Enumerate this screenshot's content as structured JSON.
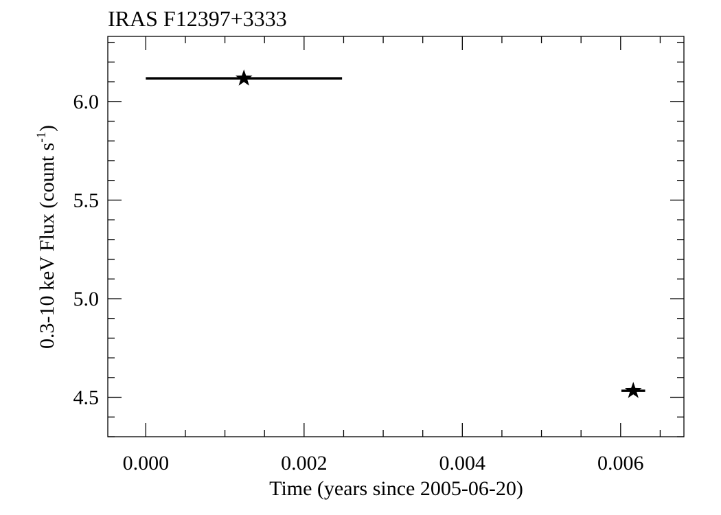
{
  "chart_data": {
    "type": "scatter",
    "title": "IRAS F12397+3333",
    "xlabel": "Time (years since 2005-06-20)",
    "ylabel": {
      "prefix": "0.3-10 keV Flux (count s",
      "superscript": "-1",
      "suffix": ")"
    },
    "xlim": [
      -0.00048,
      0.0068
    ],
    "ylim": [
      4.3,
      6.33
    ],
    "x_major_ticks": [
      0.0,
      0.002,
      0.004,
      0.006
    ],
    "x_tick_labels": [
      "0.000",
      "0.002",
      "0.004",
      "0.006"
    ],
    "x_minor_step": 0.0005,
    "y_major_ticks": [
      4.5,
      5.0,
      5.5,
      6.0
    ],
    "y_tick_labels": [
      "4.5",
      "5.0",
      "5.5",
      "6.0"
    ],
    "y_minor_step": 0.1,
    "grid": false,
    "marker": "star",
    "colors": {
      "points": "#000000",
      "axes": "#000000",
      "background": "#ffffff"
    },
    "series": [
      {
        "points": [
          {
            "x": 0.00124,
            "y": 6.117,
            "xerr": 0.00124
          },
          {
            "x": 0.00616,
            "y": 4.533,
            "xerr": 0.00015
          }
        ]
      }
    ]
  }
}
